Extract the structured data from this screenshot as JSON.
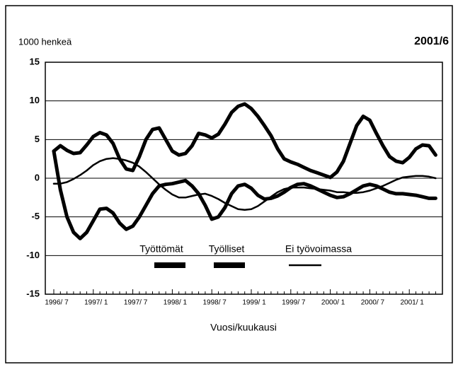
{
  "chart_data": {
    "type": "line",
    "title": "2001/6",
    "y_label": "1000 henkeä",
    "x_label": "Vuosi/kuukausi",
    "categories": [
      "1996/ 7",
      null,
      null,
      null,
      null,
      null,
      "1997/ 1",
      null,
      null,
      null,
      null,
      null,
      "1997/ 7",
      null,
      null,
      null,
      null,
      null,
      "1998/ 1",
      null,
      null,
      null,
      null,
      null,
      "1998/ 7",
      null,
      null,
      null,
      null,
      null,
      "1999/ 1",
      null,
      null,
      null,
      null,
      null,
      "1999/ 7",
      null,
      null,
      null,
      null,
      null,
      "2000/ 1",
      null,
      null,
      null,
      null,
      null,
      "2000/ 7",
      null,
      null,
      null,
      null,
      null,
      "2001/ 1",
      null,
      null,
      null,
      null
    ],
    "series": [
      {
        "name": "Työttömät",
        "color": "#000000",
        "values": [
          3.5,
          -1.5,
          -5.0,
          -7.0,
          -7.8,
          -7.0,
          -5.5,
          -4.0,
          -3.9,
          -4.5,
          -5.8,
          -6.6,
          -6.2,
          -5.0,
          -3.5,
          -2.0,
          -1.0,
          -0.8,
          -0.7,
          -0.5,
          -0.3,
          -1.0,
          -2.0,
          -3.5,
          -5.3,
          -5.0,
          -3.8,
          -2.0,
          -1.0,
          -0.8,
          -1.3,
          -2.2,
          -2.7,
          -2.6,
          -2.3,
          -1.8,
          -1.2,
          -0.8,
          -0.7,
          -1.0,
          -1.4,
          -1.8,
          -2.2,
          -2.5,
          -2.4,
          -2.0,
          -1.5,
          -1.0,
          -0.8,
          -1.0,
          -1.4,
          -1.8,
          -2.0,
          -2.0,
          -2.1,
          -2.2,
          -2.4,
          -2.6,
          -2.6
        ]
      },
      {
        "name": "Työlliset",
        "color": "#000000",
        "values": [
          3.5,
          4.2,
          3.6,
          3.2,
          3.3,
          4.3,
          5.4,
          5.9,
          5.6,
          4.5,
          2.5,
          1.2,
          1.0,
          2.8,
          5.0,
          6.3,
          6.5,
          5.0,
          3.5,
          3.0,
          3.2,
          4.2,
          5.8,
          5.6,
          5.2,
          5.7,
          7.0,
          8.5,
          9.3,
          9.6,
          9.0,
          8.0,
          6.8,
          5.5,
          3.8,
          2.5,
          2.1,
          1.8,
          1.4,
          1.0,
          0.7,
          0.4,
          0.1,
          0.8,
          2.2,
          4.5,
          6.8,
          8.0,
          7.5,
          5.8,
          4.2,
          2.8,
          2.2,
          2.0,
          2.7,
          3.8,
          4.3,
          4.2,
          3.0
        ]
      },
      {
        "name": "Ei työvoimassa",
        "color": "#000000",
        "values": [
          -0.7,
          -0.7,
          -0.5,
          -0.1,
          0.4,
          1.0,
          1.7,
          2.2,
          2.5,
          2.6,
          2.5,
          2.3,
          2.0,
          1.5,
          0.8,
          0.0,
          -0.8,
          -1.5,
          -2.1,
          -2.5,
          -2.5,
          -2.3,
          -2.1,
          -2.0,
          -2.3,
          -2.7,
          -3.2,
          -3.6,
          -4.0,
          -4.1,
          -4.0,
          -3.6,
          -3.0,
          -2.4,
          -1.8,
          -1.4,
          -1.2,
          -1.2,
          -1.2,
          -1.3,
          -1.4,
          -1.5,
          -1.6,
          -1.8,
          -1.8,
          -1.9,
          -1.9,
          -1.8,
          -1.6,
          -1.3,
          -1.0,
          -0.6,
          -0.2,
          0.1,
          0.2,
          0.3,
          0.3,
          0.2,
          0.0
        ]
      }
    ],
    "ylim": [
      -15,
      15
    ],
    "yticks": [
      -15,
      -10,
      -5,
      0,
      5,
      10,
      15
    ],
    "grid": true,
    "legend": "lower center"
  }
}
